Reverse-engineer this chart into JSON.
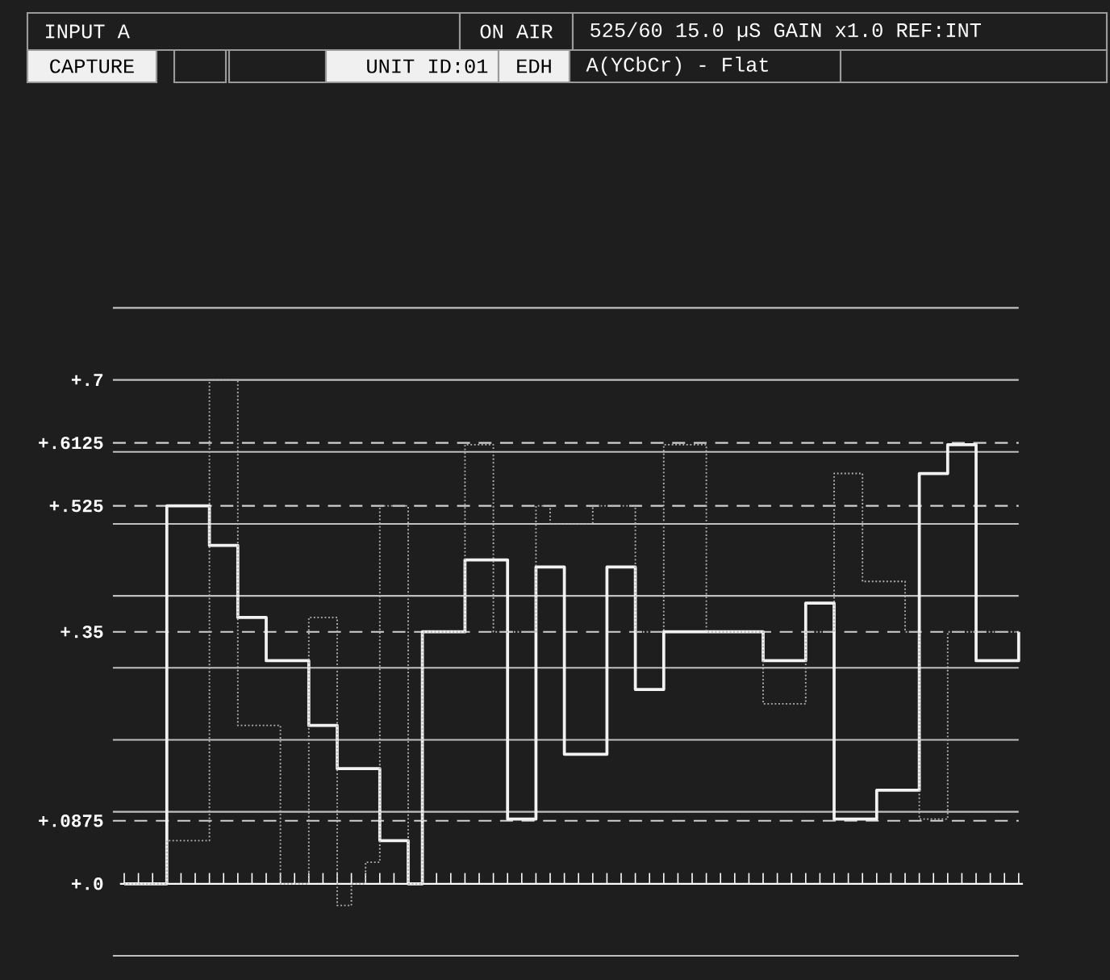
{
  "chart_data": {
    "type": "step",
    "annotations": [
      "INPUT A",
      "ON AIR",
      "525/60 15.0 µS GAIN x1.0 REF:INT",
      "CAPTURE",
      "UNIT ID:01",
      "EDH",
      "A(YCbCr) - Flat"
    ],
    "categories": [
      null,
      null,
      null,
      null,
      null,
      null,
      null,
      null,
      null,
      null,
      null,
      null,
      null,
      null,
      null,
      null,
      null,
      null,
      null,
      null,
      null,
      null,
      null,
      null,
      null,
      null,
      null,
      null,
      null,
      null,
      null,
      null,
      null,
      null,
      null,
      null,
      null,
      null,
      null,
      null,
      null,
      null,
      null,
      null,
      null,
      null,
      null,
      null,
      null,
      null,
      null,
      null,
      null,
      null,
      null,
      null,
      null,
      null,
      null,
      null,
      null,
      null,
      null,
      null
    ],
    "series": [
      {
        "color": "#f2f2f2",
        "line_style": "solid",
        "values": [
          0,
          0,
          0,
          0.525,
          0.525,
          0.525,
          0.47,
          0.47,
          0.37,
          0.37,
          0.31,
          0.31,
          0.31,
          0.22,
          0.22,
          0.16,
          0.16,
          0.16,
          0.06,
          0.06,
          0,
          0.35,
          0.35,
          0.35,
          0.45,
          0.45,
          0.45,
          0.09,
          0.09,
          0.44,
          0.44,
          0.18,
          0.18,
          0.18,
          0.44,
          0.44,
          0.27,
          0.27,
          0.35,
          0.35,
          0.35,
          0.35,
          0.35,
          0.35,
          0.35,
          0.31,
          0.31,
          0.31,
          0.39,
          0.39,
          0.09,
          0.09,
          0.09,
          0.13,
          0.13,
          0.13,
          0.57,
          0.57,
          0.61,
          0.61,
          0.31,
          0.31,
          0.31,
          0.35
        ]
      },
      {
        "color": "#b4b4b4",
        "line_style": "dotted",
        "values": [
          0,
          0,
          0,
          0.06,
          0.06,
          0.06,
          0.7,
          0.7,
          0.22,
          0.22,
          0.22,
          0,
          0,
          0.37,
          0.37,
          -0.03,
          0,
          0.03,
          0.525,
          0.525,
          0,
          0.35,
          0.35,
          0.35,
          0.61,
          0.61,
          0.35,
          0.35,
          0.35,
          0.525,
          0.5,
          0.5,
          0.5,
          0.525,
          0.525,
          0.525,
          0.35,
          0.35,
          0.61,
          0.61,
          0.61,
          0.35,
          0.35,
          0.35,
          0.35,
          0.25,
          0.25,
          0.25,
          0.35,
          0.35,
          0.57,
          0.57,
          0.42,
          0.42,
          0.42,
          0.35,
          0.09,
          0.09,
          0.35,
          0.35,
          0.35,
          0.35,
          0.35,
          0.35
        ]
      }
    ],
    "ylim": [
      -0.1,
      0.8
    ],
    "yticks": [
      {
        "value": 0,
        "label": "+.0"
      },
      {
        "value": 0.0875,
        "label": "+.0875"
      },
      {
        "value": 0.35,
        "label": "+.35"
      },
      {
        "value": 0.525,
        "label": "+.525"
      },
      {
        "value": 0.6125,
        "label": "+.6125"
      },
      {
        "value": 0.7,
        "label": "+.7"
      }
    ],
    "tick_labels": "y",
    "marker": "none",
    "ref_lines": [
      {
        "axis": "y",
        "value": -0.1,
        "color": "#c0c0c0",
        "line_style": "solid"
      },
      {
        "axis": "y",
        "value": 0.1,
        "color": "#c0c0c0",
        "line_style": "solid"
      },
      {
        "axis": "y",
        "value": 0.2,
        "color": "#c0c0c0",
        "line_style": "solid"
      },
      {
        "axis": "y",
        "value": 0.3,
        "color": "#c0c0c0",
        "line_style": "solid"
      },
      {
        "axis": "y",
        "value": 0.4,
        "color": "#c0c0c0",
        "line_style": "solid"
      },
      {
        "axis": "y",
        "value": 0.5,
        "color": "#c0c0c0",
        "line_style": "solid"
      },
      {
        "axis": "y",
        "value": 0.6,
        "color": "#c0c0c0",
        "line_style": "solid"
      },
      {
        "axis": "y",
        "value": 0.7,
        "color": "#c0c0c0",
        "line_style": "solid"
      },
      {
        "axis": "y",
        "value": 0.8,
        "color": "#c0c0c0",
        "line_style": "solid"
      },
      {
        "axis": "y",
        "value": 0.0875,
        "color": "#d0d0d0",
        "line_style": "dashed"
      },
      {
        "axis": "y",
        "value": 0.35,
        "color": "#d0d0d0",
        "line_style": "dashed"
      },
      {
        "axis": "y",
        "value": 0.525,
        "color": "#d0d0d0",
        "line_style": "dashed"
      },
      {
        "axis": "y",
        "value": 0.6125,
        "color": "#d0d0d0",
        "line_style": "dashed"
      }
    ]
  }
}
